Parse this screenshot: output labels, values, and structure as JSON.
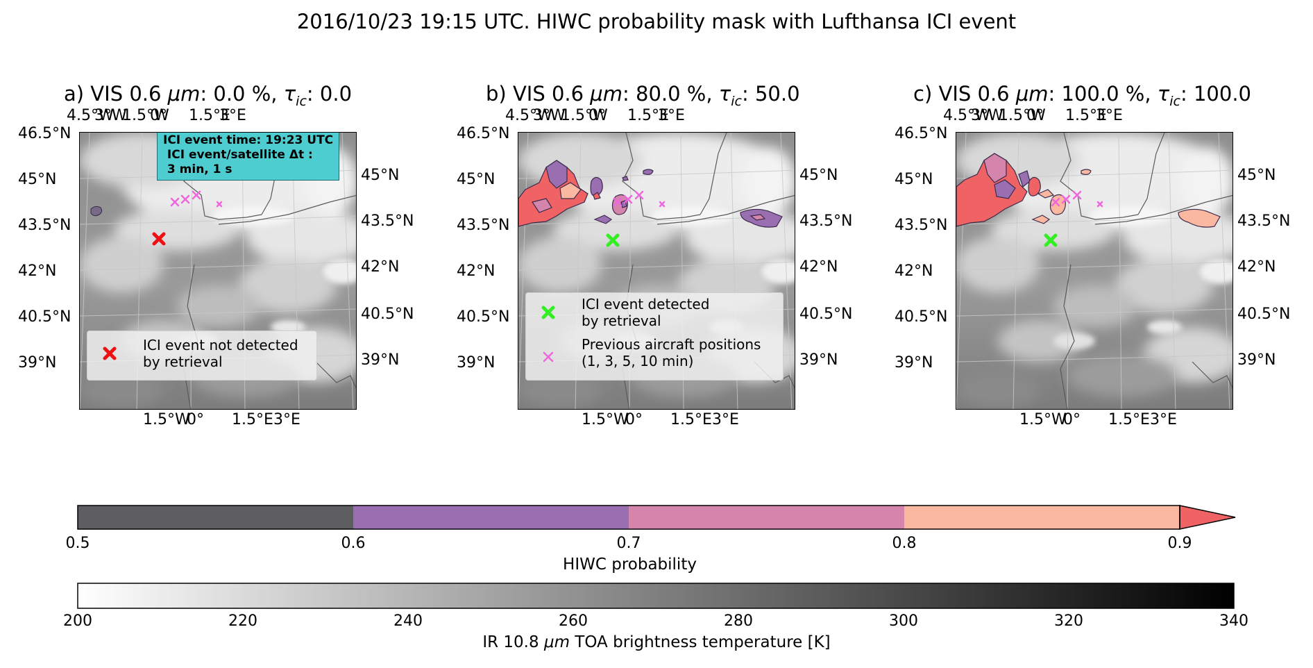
{
  "title": "2016/10/23 19:15 UTC. HIWC probability mask with Lufthansa ICI event",
  "panels": [
    {
      "label": "a) VIS 0.6 μm: 0.0 %, τic: 0.0",
      "marker": "ICI event not detected by retrieval"
    },
    {
      "label": "b) VIS 0.6 μm: 80.0 %, τic: 50.0",
      "marker": "ICI event detected by retrieval"
    },
    {
      "label": "c) VIS 0.6 μm: 100.0 %, τic: 100.0",
      "marker": "ICI event detected by retrieval"
    }
  ],
  "panel_labels": {
    "a": {
      "prefix": "a) VIS 0.6 ",
      "mu": "μm",
      "mid": ": 0.0 %, ",
      "tau": "τ",
      "sub": "ic",
      "suffix": ": 0.0"
    },
    "b": {
      "prefix": "b) VIS 0.6 ",
      "mu": "μm",
      "mid": ": 80.0 %, ",
      "tau": "τ",
      "sub": "ic",
      "suffix": ": 50.0"
    },
    "c": {
      "prefix": "c) VIS 0.6 ",
      "mu": "μm",
      "mid": ": 100.0 %, ",
      "tau": "τ",
      "sub": "ic",
      "suffix": ": 100.0"
    }
  },
  "ticks": {
    "top_lon": [
      "4.5°W",
      "3°W",
      "1.5°W",
      "0°",
      "1.5°E",
      "3°E"
    ],
    "bottom_lon": [
      "1.5°W",
      "0°",
      "1.5°E",
      "3°E"
    ],
    "left_lat": [
      "46.5°N",
      "45°N",
      "43.5°N",
      "42°N",
      "40.5°N",
      "39°N"
    ],
    "right_lat": [
      "45°N",
      "43.5°N",
      "42°N",
      "40.5°N",
      "39°N"
    ]
  },
  "info_box": {
    "line1": "ICI event time: 19:23 UTC",
    "line2": " ICI event/satellite Δt :",
    "line3": " 3 min, 1 s"
  },
  "legend_a": {
    "item1_line1": "ICI event not detected",
    "item1_line2": " by retrieval"
  },
  "legend_b": {
    "item1_line1": "ICI event detected",
    "item1_line2": " by retrieval",
    "item2_line1": "Previous aircraft positions",
    "item2_line2": " (1, 3, 5, 10 min)"
  },
  "colors": {
    "not_detected": "#ee1111",
    "detected": "#33ee22",
    "previous": "#ee66dd",
    "info_bg": "#4ecdd0"
  },
  "hiwc_colorbar": {
    "label": "HIWC probability",
    "ticks": [
      "0.5",
      "0.6",
      "0.7",
      "0.8",
      "0.9"
    ],
    "colors": [
      "#5e5e62",
      "#9a6fb1",
      "#d585ab",
      "#fbb8a0",
      "#f06364"
    ]
  },
  "ir_colorbar": {
    "label_prefix": "IR 10.8 ",
    "label_mu": "μm",
    "label_suffix": " TOA brightness temperature [K]",
    "ticks": [
      "200",
      "220",
      "240",
      "260",
      "280",
      "300",
      "320",
      "340"
    ]
  }
}
